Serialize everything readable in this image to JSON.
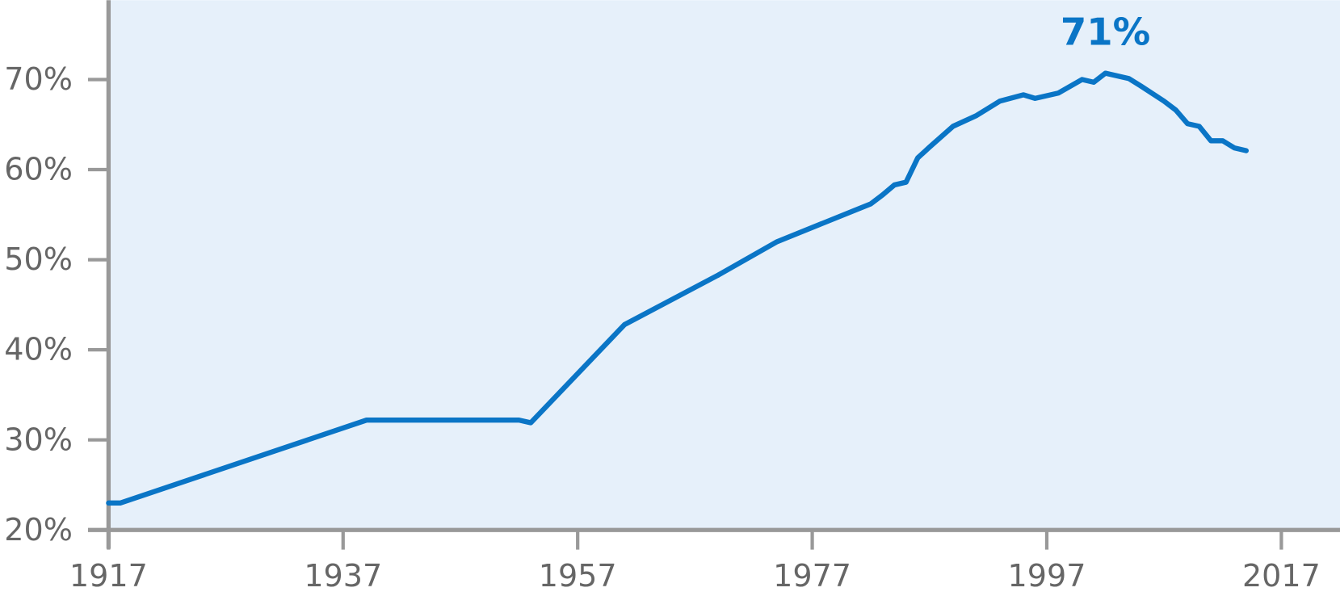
{
  "chart_data": {
    "type": "line",
    "x": [
      1917,
      1918,
      1939,
      1952,
      1953,
      1961,
      1969,
      1974,
      1982,
      1983,
      1984,
      1985,
      1986,
      1987,
      1989,
      1991,
      1993,
      1995,
      1996,
      1998,
      2000,
      2001,
      2002,
      2004,
      2005,
      2007,
      2008,
      2009,
      2010,
      2011,
      2012,
      2013,
      2014
    ],
    "series": [
      {
        "color": "#0a75c6",
        "values": [
          23.0,
          23.0,
          32.2,
          32.2,
          31.9,
          42.8,
          48.3,
          52.0,
          56.2,
          57.2,
          58.3,
          58.6,
          61.3,
          62.5,
          64.8,
          66.0,
          67.6,
          68.3,
          67.9,
          68.5,
          70.0,
          69.7,
          70.7,
          70.1,
          69.3,
          67.6,
          66.6,
          65.1,
          64.8,
          63.2,
          63.2,
          62.4,
          62.1
        ]
      }
    ],
    "xlim": [
      1917,
      2022
    ],
    "xticks": [
      1917,
      1937,
      1957,
      1977,
      1997,
      2017
    ],
    "ylim": [
      20,
      78.8
    ],
    "yticks": [
      {
        "value": 20,
        "label": "20%"
      },
      {
        "value": 30,
        "label": "30%"
      },
      {
        "value": 40,
        "label": "40%"
      },
      {
        "value": 50,
        "label": "50%"
      },
      {
        "value": 60,
        "label": "60%"
      },
      {
        "value": 70,
        "label": "70%"
      }
    ],
    "annotations": [
      {
        "text": "71%"
      }
    ]
  }
}
